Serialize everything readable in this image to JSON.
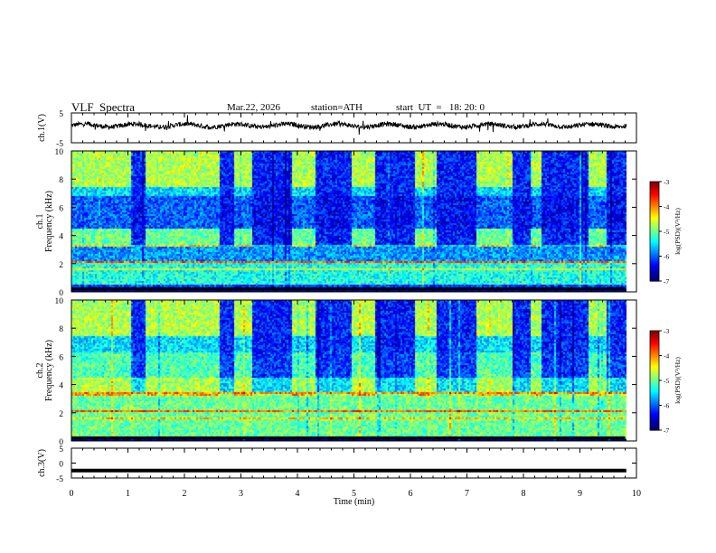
{
  "header": {
    "title": "VLF  Spectra",
    "date": "Mar.22, 2026",
    "station": "station=ATH",
    "start_ut": "start  UT  =   18: 20: 0"
  },
  "chart_data": [
    {
      "type": "line",
      "name": "ch1-waveform",
      "ylabel": "ch.1(V)",
      "ylim": [
        -5,
        5
      ],
      "yticks": [
        "5",
        "-5"
      ],
      "xlim": [
        0,
        10
      ],
      "description_level": 0.8
    },
    {
      "type": "heatmap",
      "name": "ch1-spectrogram",
      "ylabel_top": "ch.1",
      "ylabel": "Frequency  (kHz)",
      "ylim": [
        0,
        10
      ],
      "yticks": [
        "0",
        "2",
        "4",
        "6",
        "8",
        "10"
      ],
      "xlim": [
        0,
        9.8
      ],
      "dark_blocks_min": [
        [
          1.05,
          1.28
        ],
        [
          2.6,
          2.85
        ],
        [
          3.2,
          3.9
        ],
        [
          4.3,
          4.95
        ],
        [
          5.35,
          6.05
        ],
        [
          6.45,
          7.15
        ],
        [
          7.8,
          8.1
        ],
        [
          8.3,
          9.15
        ],
        [
          9.45,
          9.8
        ]
      ],
      "colorbar": {
        "label": "log(PSD)(V²/Hz)",
        "ticks": [
          "-3",
          "-4",
          "-5",
          "-6",
          "-7"
        ],
        "range": [
          -7,
          -3
        ]
      }
    },
    {
      "type": "heatmap",
      "name": "ch2-spectrogram",
      "ylabel_top": "ch.2",
      "ylabel": "Frequency  (kHz)",
      "ylim": [
        0,
        10
      ],
      "yticks": [
        "0",
        "2",
        "4",
        "6",
        "8",
        "10"
      ],
      "xlim": [
        0,
        9.8
      ],
      "colorbar": {
        "label": "log(PSD)(V²/Hz)",
        "ticks": [
          "-3",
          "-4",
          "-5",
          "-6",
          "-7"
        ],
        "range": [
          -7,
          -3
        ]
      }
    },
    {
      "type": "line",
      "name": "ch3-waveform",
      "ylabel": "ch.3(V)",
      "ylim": [
        -5,
        5
      ],
      "yticks": [
        "5",
        "0",
        "-5"
      ],
      "xlim": [
        0,
        10
      ],
      "level": -2.5
    }
  ],
  "xaxis": {
    "label": "Time  (min)",
    "ticks": [
      "0",
      "1",
      "2",
      "3",
      "4",
      "5",
      "6",
      "7",
      "8",
      "9",
      "10"
    ]
  }
}
